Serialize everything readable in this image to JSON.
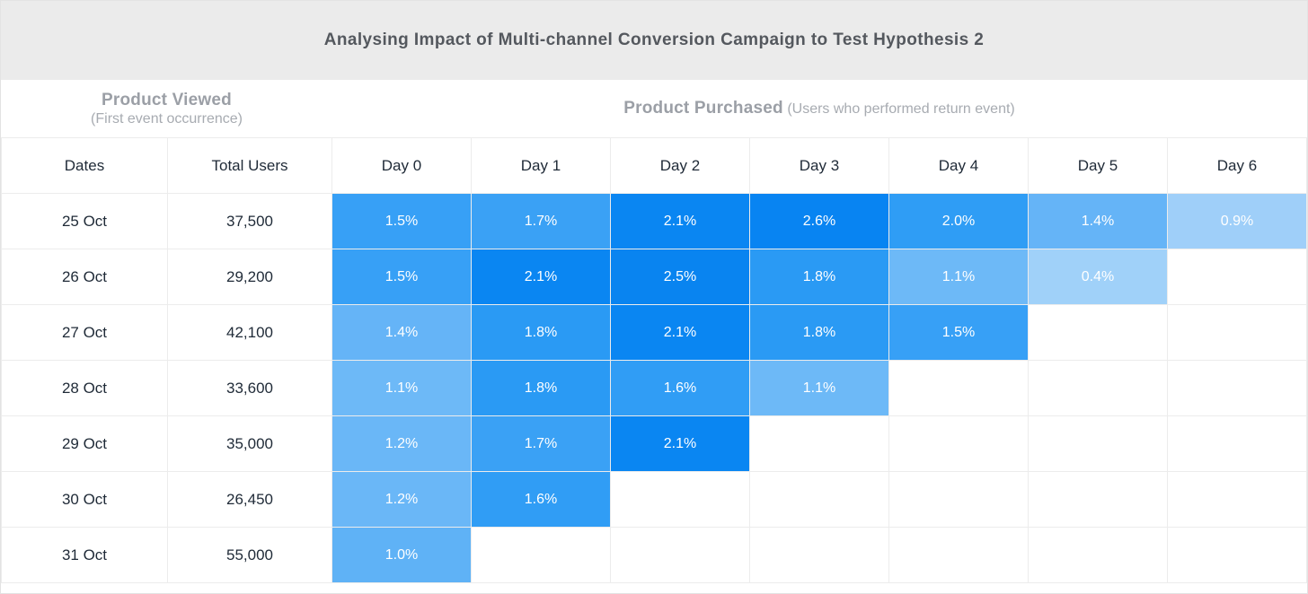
{
  "report": {
    "title": "Analysing Impact of Multi-channel Conversion Campaign to Test Hypothesis 2"
  },
  "sections": {
    "viewed": {
      "title": "Product Viewed",
      "subtitle": "(First event occurrence)"
    },
    "purchased": {
      "title": "Product Purchased",
      "subtitle": "(Users who performed return event)"
    }
  },
  "columns": {
    "dates": "Dates",
    "total_users": "Total Users"
  },
  "chart_data": {
    "type": "heatmap",
    "title": "Analysing Impact of Multi-channel Conversion Campaign to Test Hypothesis 2",
    "row_group_label": "Product Viewed (First event occurrence)",
    "column_group_label": "Product Purchased (Users who performed return event)",
    "columns": [
      "Day 0",
      "Day 1",
      "Day 2",
      "Day 3",
      "Day 4",
      "Day 5",
      "Day 6"
    ],
    "unit": "%",
    "rows": [
      {
        "date": "25 Oct",
        "total_users": "37,500",
        "values": [
          1.5,
          1.7,
          2.1,
          2.6,
          2.0,
          1.4,
          0.9
        ]
      },
      {
        "date": "26 Oct",
        "total_users": "29,200",
        "values": [
          1.5,
          2.1,
          2.5,
          1.8,
          1.1,
          0.4,
          null
        ]
      },
      {
        "date": "27 Oct",
        "total_users": "42,100",
        "values": [
          1.4,
          1.8,
          2.1,
          1.8,
          1.5,
          null,
          null
        ]
      },
      {
        "date": "28 Oct",
        "total_users": "33,600",
        "values": [
          1.1,
          1.8,
          1.6,
          1.1,
          null,
          null,
          null
        ]
      },
      {
        "date": "29 Oct",
        "total_users": "35,000",
        "values": [
          1.2,
          1.7,
          2.1,
          null,
          null,
          null,
          null
        ]
      },
      {
        "date": "30 Oct",
        "total_users": "26,450",
        "values": [
          1.2,
          1.6,
          null,
          null,
          null,
          null,
          null
        ]
      },
      {
        "date": "31 Oct",
        "total_users": "55,000",
        "values": [
          1.0,
          null,
          null,
          null,
          null,
          null,
          null
        ]
      }
    ],
    "color_scale": {
      "low": "#A0D1F9",
      "high": "#0884F2",
      "legend": "off"
    },
    "value_colors": {
      "0.4": "#A0D1F9",
      "0.9": "#9FCFF9",
      "1.0": "#5FB2F6",
      "1.1": "#6DB9F7",
      "1.2": "#6AB7F7",
      "1.4": "#65B4F7",
      "1.5": "#37A0F6",
      "1.6": "#309DF5",
      "1.7": "#3AA1F5",
      "1.8": "#2A9AF4",
      "2.0": "#2F9DF5",
      "2.1": "#0A86F2",
      "2.5": "#0984F0",
      "2.6": "#0884F2"
    }
  },
  "colors": {
    "header_band_bg": "#EBEBEB",
    "title_text": "#54585E",
    "section_text": "#9B9FA6",
    "dark_text": "#1F2A37",
    "grid_line": "#ECECEC",
    "heat_cell_text": "#FFFFFF"
  }
}
